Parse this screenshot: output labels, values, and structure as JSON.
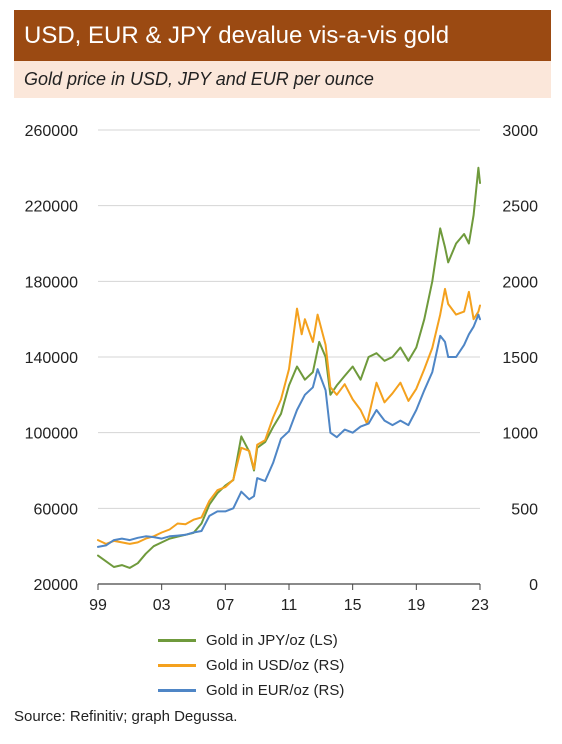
{
  "header": {
    "title": "USD, EUR & JPY devalue vis-a-vis gold",
    "subtitle": "Gold price in USD, JPY and EUR per ounce"
  },
  "chart_data": {
    "type": "line",
    "title": "USD, EUR & JPY devalue vis-a-vis gold",
    "subtitle": "Gold price in USD, JPY and EUR per ounce",
    "x_tick_labels": [
      "99",
      "03",
      "07",
      "11",
      "15",
      "19",
      "23"
    ],
    "x_tick_values": [
      1999,
      2003,
      2007,
      2011,
      2015,
      2019,
      2023
    ],
    "xlim": [
      1999,
      2023
    ],
    "y_left": {
      "ticks": [
        20000,
        60000,
        100000,
        140000,
        180000,
        220000,
        260000
      ],
      "tick_labels": [
        "20000",
        "60000",
        "100000",
        "140000",
        "180000",
        "220000",
        "260000"
      ],
      "lim": [
        20000,
        260000
      ]
    },
    "y_right": {
      "ticks": [
        0,
        500,
        1000,
        1500,
        2000,
        2500,
        3000
      ],
      "tick_labels": [
        "0",
        "500",
        "1000",
        "1500",
        "2000",
        "2500",
        "3000"
      ],
      "lim": [
        0,
        3000
      ]
    },
    "grid": "horizontal",
    "legend_position": "bottom",
    "series": [
      {
        "name": "Gold in JPY/oz (LS)",
        "axis": "left",
        "color": "#6f9a3c",
        "points": [
          [
            1999,
            35000
          ],
          [
            1999.5,
            32000
          ],
          [
            2000,
            29000
          ],
          [
            2000.5,
            30000
          ],
          [
            2001,
            28500
          ],
          [
            2001.5,
            31000
          ],
          [
            2002,
            36000
          ],
          [
            2002.5,
            40000
          ],
          [
            2003,
            42000
          ],
          [
            2003.5,
            44000
          ],
          [
            2004,
            45000
          ],
          [
            2004.5,
            46000
          ],
          [
            2005,
            47000
          ],
          [
            2005.5,
            52000
          ],
          [
            2006,
            62000
          ],
          [
            2006.5,
            68000
          ],
          [
            2007,
            72000
          ],
          [
            2007.5,
            75000
          ],
          [
            2008,
            98000
          ],
          [
            2008.5,
            90000
          ],
          [
            2008.8,
            80000
          ],
          [
            2009,
            92000
          ],
          [
            2009.5,
            95000
          ],
          [
            2010,
            103000
          ],
          [
            2010.5,
            110000
          ],
          [
            2011,
            125000
          ],
          [
            2011.5,
            135000
          ],
          [
            2012,
            128000
          ],
          [
            2012.5,
            132000
          ],
          [
            2012.9,
            148000
          ],
          [
            2013.3,
            140000
          ],
          [
            2013.6,
            120000
          ],
          [
            2014,
            125000
          ],
          [
            2014.5,
            130000
          ],
          [
            2015,
            135000
          ],
          [
            2015.5,
            128000
          ],
          [
            2016,
            140000
          ],
          [
            2016.5,
            142000
          ],
          [
            2017,
            138000
          ],
          [
            2017.5,
            140000
          ],
          [
            2018,
            145000
          ],
          [
            2018.5,
            138000
          ],
          [
            2019,
            145000
          ],
          [
            2019.5,
            160000
          ],
          [
            2020,
            180000
          ],
          [
            2020.5,
            208000
          ],
          [
            2020.8,
            198000
          ],
          [
            2021,
            190000
          ],
          [
            2021.5,
            200000
          ],
          [
            2022,
            205000
          ],
          [
            2022.3,
            200000
          ],
          [
            2022.6,
            215000
          ],
          [
            2022.9,
            240000
          ],
          [
            2023,
            232000
          ]
        ]
      },
      {
        "name": "Gold in USD/oz (RS)",
        "axis": "right",
        "color": "#f4a11e",
        "points": [
          [
            1999,
            290
          ],
          [
            1999.5,
            265
          ],
          [
            2000,
            285
          ],
          [
            2000.5,
            275
          ],
          [
            2001,
            265
          ],
          [
            2001.5,
            275
          ],
          [
            2002,
            300
          ],
          [
            2002.5,
            315
          ],
          [
            2003,
            340
          ],
          [
            2003.5,
            360
          ],
          [
            2004,
            400
          ],
          [
            2004.5,
            395
          ],
          [
            2005,
            425
          ],
          [
            2005.5,
            440
          ],
          [
            2006,
            550
          ],
          [
            2006.5,
            620
          ],
          [
            2007,
            640
          ],
          [
            2007.5,
            690
          ],
          [
            2008,
            900
          ],
          [
            2008.5,
            880
          ],
          [
            2008.8,
            760
          ],
          [
            2009,
            920
          ],
          [
            2009.5,
            950
          ],
          [
            2010,
            1100
          ],
          [
            2010.5,
            1220
          ],
          [
            2011,
            1420
          ],
          [
            2011.5,
            1820
          ],
          [
            2011.8,
            1650
          ],
          [
            2012,
            1750
          ],
          [
            2012.5,
            1600
          ],
          [
            2012.8,
            1780
          ],
          [
            2013.3,
            1580
          ],
          [
            2013.6,
            1300
          ],
          [
            2014,
            1250
          ],
          [
            2014.5,
            1320
          ],
          [
            2015,
            1220
          ],
          [
            2015.5,
            1150
          ],
          [
            2015.9,
            1060
          ],
          [
            2016.5,
            1330
          ],
          [
            2017,
            1200
          ],
          [
            2017.5,
            1260
          ],
          [
            2018,
            1330
          ],
          [
            2018.5,
            1210
          ],
          [
            2019,
            1290
          ],
          [
            2019.5,
            1420
          ],
          [
            2020,
            1560
          ],
          [
            2020.5,
            1780
          ],
          [
            2020.8,
            1950
          ],
          [
            2021,
            1850
          ],
          [
            2021.5,
            1780
          ],
          [
            2022,
            1800
          ],
          [
            2022.3,
            1930
          ],
          [
            2022.6,
            1750
          ],
          [
            2022.9,
            1800
          ],
          [
            2023,
            1840
          ]
        ]
      },
      {
        "name": "Gold in EUR/oz (RS)",
        "axis": "right",
        "color": "#4f86c6",
        "points": [
          [
            1999,
            245
          ],
          [
            1999.5,
            255
          ],
          [
            2000,
            290
          ],
          [
            2000.5,
            300
          ],
          [
            2001,
            290
          ],
          [
            2001.5,
            305
          ],
          [
            2002,
            315
          ],
          [
            2002.5,
            310
          ],
          [
            2003,
            300
          ],
          [
            2003.5,
            315
          ],
          [
            2004,
            320
          ],
          [
            2004.5,
            325
          ],
          [
            2005,
            340
          ],
          [
            2005.5,
            350
          ],
          [
            2006,
            450
          ],
          [
            2006.5,
            480
          ],
          [
            2007,
            480
          ],
          [
            2007.5,
            500
          ],
          [
            2008,
            610
          ],
          [
            2008.5,
            560
          ],
          [
            2008.8,
            580
          ],
          [
            2009,
            700
          ],
          [
            2009.5,
            680
          ],
          [
            2010,
            800
          ],
          [
            2010.5,
            960
          ],
          [
            2011,
            1010
          ],
          [
            2011.5,
            1150
          ],
          [
            2012,
            1250
          ],
          [
            2012.5,
            1300
          ],
          [
            2012.8,
            1420
          ],
          [
            2013.3,
            1280
          ],
          [
            2013.6,
            1000
          ],
          [
            2014,
            970
          ],
          [
            2014.5,
            1020
          ],
          [
            2015,
            1000
          ],
          [
            2015.5,
            1040
          ],
          [
            2016,
            1060
          ],
          [
            2016.5,
            1150
          ],
          [
            2017,
            1080
          ],
          [
            2017.5,
            1050
          ],
          [
            2018,
            1080
          ],
          [
            2018.5,
            1050
          ],
          [
            2019,
            1150
          ],
          [
            2019.5,
            1280
          ],
          [
            2020,
            1400
          ],
          [
            2020.5,
            1640
          ],
          [
            2020.8,
            1600
          ],
          [
            2021,
            1500
          ],
          [
            2021.5,
            1500
          ],
          [
            2022,
            1580
          ],
          [
            2022.3,
            1650
          ],
          [
            2022.6,
            1700
          ],
          [
            2022.9,
            1780
          ],
          [
            2023,
            1750
          ]
        ]
      }
    ]
  },
  "source": "Source: Refinitiv; graph Degussa."
}
